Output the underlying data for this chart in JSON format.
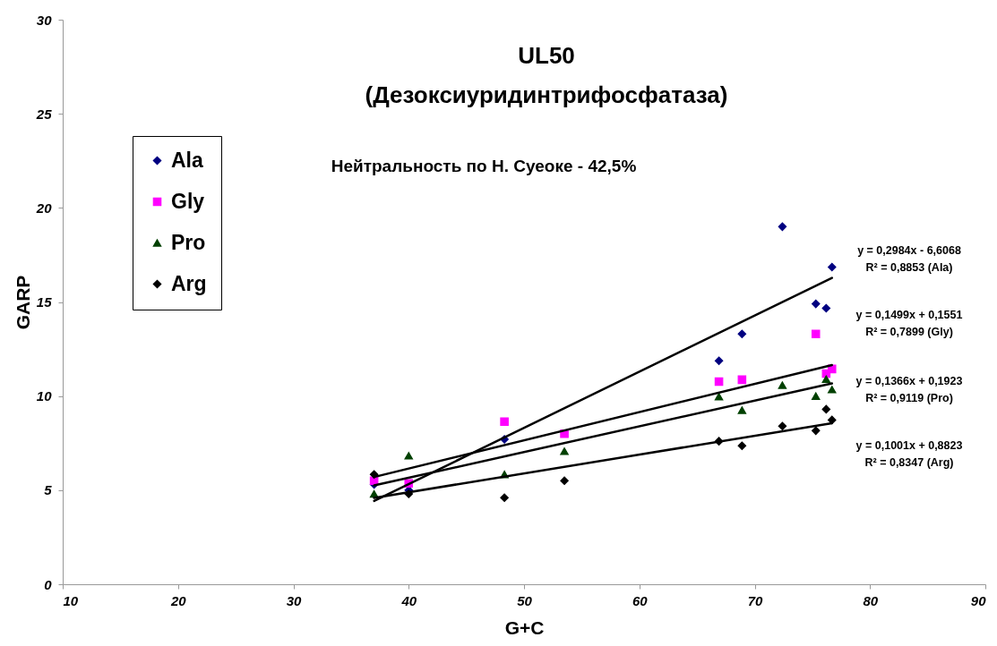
{
  "chart_data": {
    "type": "scatter",
    "title": "UL50",
    "subtitle": "(Дезоксиуридинтрифосфатаза)",
    "xlabel": "G+C",
    "ylabel": "GARP",
    "annotations": [
      "Нейтральность по Н. Суеоке - 42,5%",
      "y = 0,2984x - 6,6068\nR² = 0,8853 (Ala)",
      "y = 0,1499x + 0,1551\nR² = 0,7899 (Gly)",
      "y = 0,1366x + 0,1923\nR² = 0,9119 (Pro)",
      "y = 0,1001x + 0,8823\nR² = 0,8347 (Arg)"
    ],
    "x": [
      37,
      40,
      48.3,
      53.5,
      66.9,
      68.9,
      72.4,
      75.3,
      76.2,
      76.7
    ],
    "series": [
      {
        "name": "Ala",
        "color": "#000080",
        "marker": "diamond",
        "values": [
          5.3,
          5.0,
          7.7,
          null,
          11.87,
          13.3,
          19.0,
          14.9,
          14.67,
          16.85
        ]
      },
      {
        "name": "Gly",
        "color": "#ff00ff",
        "marker": "square",
        "values": [
          5.5,
          5.36,
          8.64,
          8.0,
          10.77,
          10.87,
          null,
          13.3,
          11.2,
          11.44
        ]
      },
      {
        "name": "Pro",
        "color": "#004000",
        "marker": "triangle",
        "values": [
          4.8,
          6.83,
          5.84,
          7.07,
          9.97,
          9.25,
          10.58,
          10.0,
          10.9,
          10.35
        ]
      },
      {
        "name": "Arg",
        "color": "#000000",
        "marker": "diamond",
        "values": [
          5.84,
          4.8,
          4.6,
          5.5,
          7.6,
          7.36,
          8.4,
          8.16,
          9.3,
          8.73
        ]
      },
      {
        "type": "line",
        "color": "#000000",
        "values": [
          4.43,
          null,
          null,
          null,
          null,
          null,
          null,
          null,
          null,
          16.28
        ]
      },
      {
        "type": "line",
        "color": "#000000",
        "values": [
          5.7,
          null,
          null,
          null,
          null,
          null,
          null,
          null,
          null,
          11.65
        ]
      },
      {
        "type": "line",
        "color": "#000000",
        "values": [
          5.25,
          null,
          null,
          null,
          null,
          null,
          null,
          null,
          null,
          10.67
        ]
      },
      {
        "type": "line",
        "color": "#000000",
        "values": [
          4.59,
          null,
          null,
          null,
          null,
          null,
          null,
          null,
          null,
          8.56
        ]
      }
    ],
    "xlim": [
      10,
      90
    ],
    "xticks": [
      10,
      20,
      30,
      40,
      50,
      60,
      70,
      80,
      90
    ],
    "ylim": [
      0,
      30
    ],
    "yticks": [
      0,
      5,
      10,
      15,
      20,
      25,
      30
    ],
    "grid": false,
    "legend": "top left"
  }
}
